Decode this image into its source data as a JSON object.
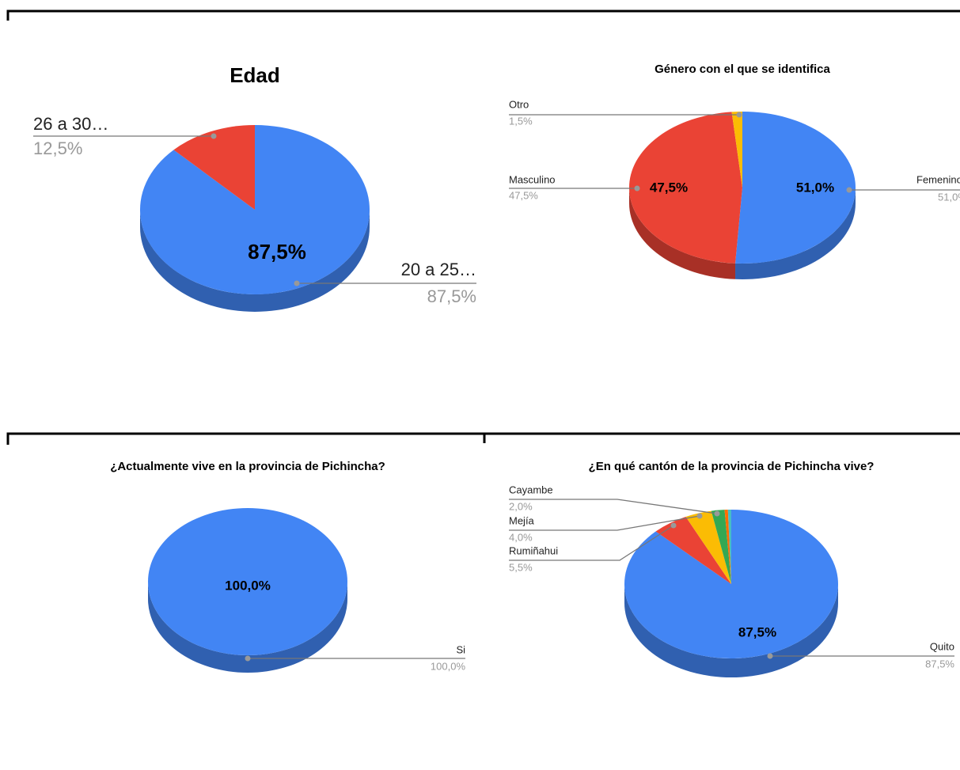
{
  "chart_data": [
    {
      "type": "pie",
      "title": "Edad",
      "categories": [
        "20 a 25…",
        "26 a 30…"
      ],
      "values": [
        87.5,
        12.5
      ],
      "value_labels": [
        "87,5%",
        "12,5%"
      ],
      "colors": [
        "#4285f4",
        "#ea4335"
      ]
    },
    {
      "type": "pie",
      "title": "Género con el que se identifica",
      "categories": [
        "Femenino",
        "Masculino",
        "Otro"
      ],
      "values": [
        51.0,
        47.5,
        1.5
      ],
      "value_labels": [
        "51,0%",
        "47,5%",
        "1,5%"
      ],
      "colors": [
        "#4285f4",
        "#ea4335",
        "#fbbc04"
      ]
    },
    {
      "type": "pie",
      "title": "¿Actualmente vive en la provincia de Pichincha?",
      "categories": [
        "Si"
      ],
      "values": [
        100
      ],
      "value_labels": [
        "100,0%"
      ],
      "colors": [
        "#4285f4"
      ]
    },
    {
      "type": "pie",
      "title": "¿En qué cantón de la provincia de Pichincha vive?",
      "categories": [
        "Quito",
        "Rumiñahui",
        "Mejía",
        "Cayambe",
        null,
        null
      ],
      "values": [
        87.5,
        5.5,
        4.0,
        2.0,
        0.5,
        0.5
      ],
      "value_labels": [
        "87,5%",
        "5,5%",
        "4,0%",
        "2,0%",
        null,
        null
      ],
      "colors": [
        "#4285f4",
        "#ea4335",
        "#fbbc04",
        "#34a853",
        "#ff6d01",
        "#46bdc6"
      ]
    }
  ]
}
